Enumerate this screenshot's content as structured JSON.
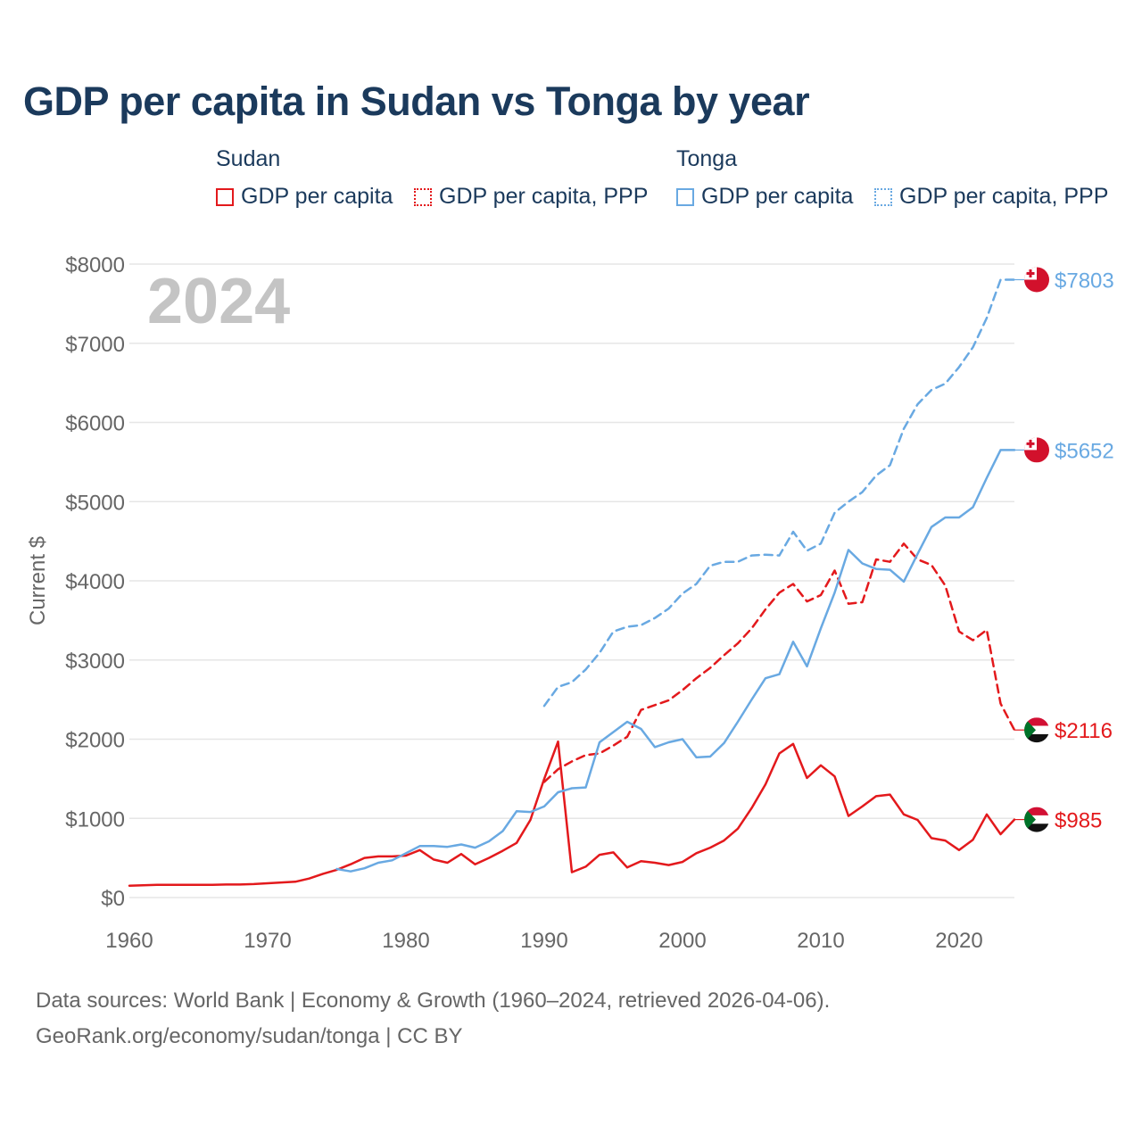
{
  "title": "GDP per capita in Sudan vs Tonga by year",
  "legend": {
    "groups": [
      {
        "name": "Sudan",
        "color": "#e3191c",
        "items": [
          {
            "label": "GDP per capita",
            "style": "solid"
          },
          {
            "label": "GDP per capita, PPP",
            "style": "dotted"
          }
        ]
      },
      {
        "name": "Tonga",
        "color": "#69a9e2",
        "items": [
          {
            "label": "GDP per capita",
            "style": "solid"
          },
          {
            "label": "GDP per capita, PPP",
            "style": "dotted"
          }
        ]
      }
    ]
  },
  "year_label": "2024",
  "footer": {
    "line1": "Data sources: World Bank | Economy & Growth (1960–2024, retrieved 2026-04-06).",
    "line2": "GeoRank.org/economy/sudan/tonga | CC BY"
  },
  "chart_data": {
    "type": "line",
    "title": "GDP per capita in Sudan vs Tonga by year",
    "xlabel": "",
    "ylabel": "Current $",
    "xlim": [
      1960,
      2024
    ],
    "ylim": [
      0,
      8000
    ],
    "xticks": [
      1960,
      1970,
      1980,
      1990,
      2000,
      2010,
      2020
    ],
    "yticks": [
      0,
      1000,
      2000,
      3000,
      4000,
      5000,
      6000,
      7000,
      8000
    ],
    "ytick_labels": [
      "$0",
      "$1000",
      "$2000",
      "$3000",
      "$4000",
      "$5000",
      "$6000",
      "$7000",
      "$8000"
    ],
    "grid": true,
    "series": [
      {
        "name": "Sudan GDP per capita",
        "country": "Sudan",
        "color": "#e3191c",
        "dash": "solid",
        "end_label": "$985",
        "flag": "sudan",
        "x": [
          1960,
          1961,
          1962,
          1963,
          1964,
          1965,
          1966,
          1967,
          1968,
          1969,
          1970,
          1971,
          1972,
          1973,
          1974,
          1975,
          1976,
          1977,
          1978,
          1979,
          1980,
          1981,
          1982,
          1983,
          1984,
          1985,
          1986,
          1987,
          1988,
          1989,
          1990,
          1991,
          1992,
          1993,
          1994,
          1995,
          1996,
          1997,
          1998,
          1999,
          2000,
          2001,
          2002,
          2003,
          2004,
          2005,
          2006,
          2007,
          2008,
          2009,
          2010,
          2011,
          2012,
          2013,
          2014,
          2015,
          2016,
          2017,
          2018,
          2019,
          2020,
          2021,
          2022,
          2023,
          2024
        ],
        "y": [
          150,
          155,
          160,
          160,
          160,
          160,
          160,
          165,
          165,
          170,
          180,
          190,
          200,
          240,
          300,
          350,
          420,
          500,
          520,
          520,
          530,
          600,
          480,
          440,
          550,
          420,
          500,
          590,
          690,
          980,
          1500,
          1970,
          320,
          390,
          540,
          570,
          380,
          460,
          440,
          410,
          450,
          560,
          630,
          720,
          870,
          1130,
          1430,
          1820,
          1940,
          1510,
          1670,
          1530,
          1030,
          1150,
          1280,
          1300,
          1050,
          980,
          750,
          720,
          600,
          730,
          1050,
          800,
          985
        ]
      },
      {
        "name": "Sudan GDP per capita, PPP",
        "country": "Sudan",
        "color": "#e3191c",
        "dash": "dashed",
        "end_label": "$2116",
        "flag": "sudan",
        "x": [
          1990,
          1991,
          1992,
          1993,
          1994,
          1995,
          1996,
          1997,
          1998,
          1999,
          2000,
          2001,
          2002,
          2003,
          2004,
          2005,
          2006,
          2007,
          2008,
          2009,
          2010,
          2011,
          2012,
          2013,
          2014,
          2015,
          2016,
          2017,
          2018,
          2019,
          2020,
          2021,
          2022,
          2023,
          2024
        ],
        "y": [
          1460,
          1620,
          1720,
          1800,
          1820,
          1920,
          2030,
          2370,
          2430,
          2490,
          2620,
          2770,
          2900,
          3060,
          3210,
          3400,
          3640,
          3850,
          3960,
          3740,
          3820,
          4130,
          3710,
          3730,
          4270,
          4240,
          4470,
          4270,
          4200,
          3940,
          3360,
          3250,
          3380,
          2450,
          2116
        ]
      },
      {
        "name": "Tonga GDP per capita",
        "country": "Tonga",
        "color": "#69a9e2",
        "dash": "solid",
        "end_label": "$5652",
        "flag": "tonga",
        "x": [
          1975,
          1976,
          1977,
          1978,
          1979,
          1980,
          1981,
          1982,
          1983,
          1984,
          1985,
          1986,
          1987,
          1988,
          1989,
          1990,
          1991,
          1992,
          1993,
          1994,
          1995,
          1996,
          1997,
          1998,
          1999,
          2000,
          2001,
          2002,
          2003,
          2004,
          2005,
          2006,
          2007,
          2008,
          2009,
          2010,
          2011,
          2012,
          2013,
          2014,
          2015,
          2016,
          2017,
          2018,
          2019,
          2020,
          2021,
          2022,
          2023,
          2024
        ],
        "y": [
          360,
          330,
          370,
          440,
          470,
          560,
          650,
          650,
          640,
          670,
          630,
          710,
          840,
          1090,
          1080,
          1150,
          1330,
          1380,
          1390,
          1960,
          2090,
          2220,
          2130,
          1900,
          1960,
          2000,
          1770,
          1780,
          1950,
          2220,
          2500,
          2770,
          2820,
          3230,
          2920,
          3400,
          3850,
          4390,
          4220,
          4150,
          4140,
          3990,
          4340,
          4680,
          4800,
          4800,
          4930,
          5300,
          5652,
          5652
        ]
      },
      {
        "name": "Tonga GDP per capita, PPP",
        "country": "Tonga",
        "color": "#69a9e2",
        "dash": "dashed",
        "end_label": "$7803",
        "flag": "tonga",
        "x": [
          1990,
          1991,
          1992,
          1993,
          1994,
          1995,
          1996,
          1997,
          1998,
          1999,
          2000,
          2001,
          2002,
          2003,
          2004,
          2005,
          2006,
          2007,
          2008,
          2009,
          2010,
          2011,
          2012,
          2013,
          2014,
          2015,
          2016,
          2017,
          2018,
          2019,
          2020,
          2021,
          2022,
          2023,
          2024
        ],
        "y": [
          2420,
          2660,
          2720,
          2880,
          3090,
          3360,
          3420,
          3440,
          3530,
          3650,
          3840,
          3960,
          4190,
          4240,
          4240,
          4320,
          4330,
          4320,
          4620,
          4380,
          4470,
          4860,
          5000,
          5120,
          5330,
          5460,
          5920,
          6230,
          6410,
          6490,
          6700,
          6950,
          7320,
          7803,
          7803
        ]
      }
    ]
  }
}
